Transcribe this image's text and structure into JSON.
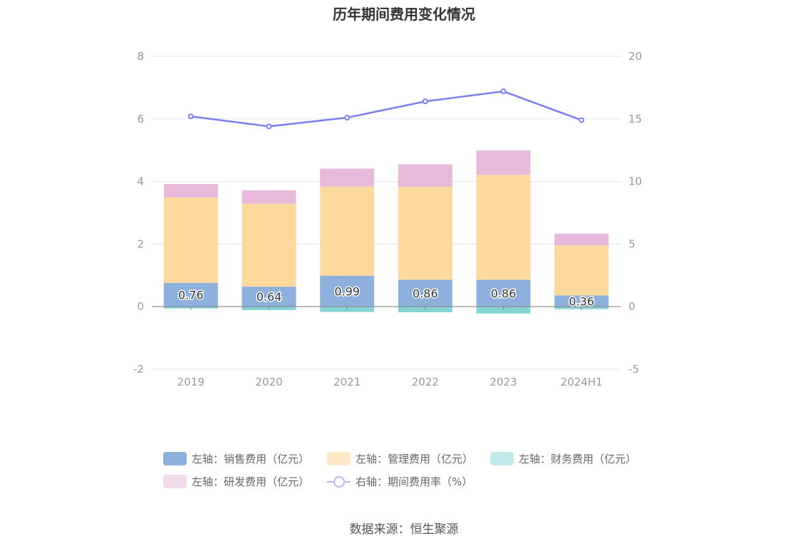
{
  "title": "历年期间费用变化情况",
  "source": "数据来源：恒生聚源",
  "chart_data": {
    "type": "bar",
    "stacked": true,
    "categories": [
      "2019",
      "2020",
      "2021",
      "2022",
      "2023",
      "2024H1"
    ],
    "left_axis": {
      "ylim": [
        -2,
        8
      ],
      "ticks": [
        "8",
        "6",
        "4",
        "2",
        "0",
        "-2"
      ],
      "tick_values": [
        8,
        6,
        4,
        2,
        0,
        -2
      ]
    },
    "right_axis": {
      "ylim": [
        -5,
        20
      ],
      "ticks": [
        "20",
        "15",
        "10",
        "5",
        "0",
        "-5"
      ],
      "tick_values": [
        20,
        15,
        10,
        5,
        0,
        -5
      ]
    },
    "grid": true,
    "legend_position": "bottom",
    "series": [
      {
        "name": "左轴：销售费用（亿元）",
        "axis": "left",
        "color": "#8eb0dc",
        "values": [
          0.76,
          0.64,
          0.99,
          0.86,
          0.86,
          0.36
        ],
        "labels": [
          "0.76",
          "0.64",
          "0.99",
          "0.86",
          "0.86",
          "0.36"
        ]
      },
      {
        "name": "左轴：管理费用（亿元）",
        "axis": "left",
        "color": "#fed99e",
        "values": [
          2.73,
          2.65,
          2.85,
          2.97,
          3.35,
          1.6
        ]
      },
      {
        "name": "左轴：财务费用（亿元）",
        "axis": "left",
        "color": "#86d4d6",
        "values": [
          -0.06,
          -0.11,
          -0.17,
          -0.18,
          -0.22,
          -0.08
        ]
      },
      {
        "name": "左轴：研发费用（亿元）",
        "axis": "left",
        "color": "#e8b9db",
        "values": [
          0.43,
          0.43,
          0.57,
          0.72,
          0.78,
          0.37
        ]
      },
      {
        "name": "右轴：期间费用率（%）",
        "axis": "right",
        "type": "line",
        "color": "#7b7ff0",
        "values": [
          15.2,
          14.4,
          15.1,
          16.4,
          17.2,
          14.9
        ]
      }
    ]
  }
}
